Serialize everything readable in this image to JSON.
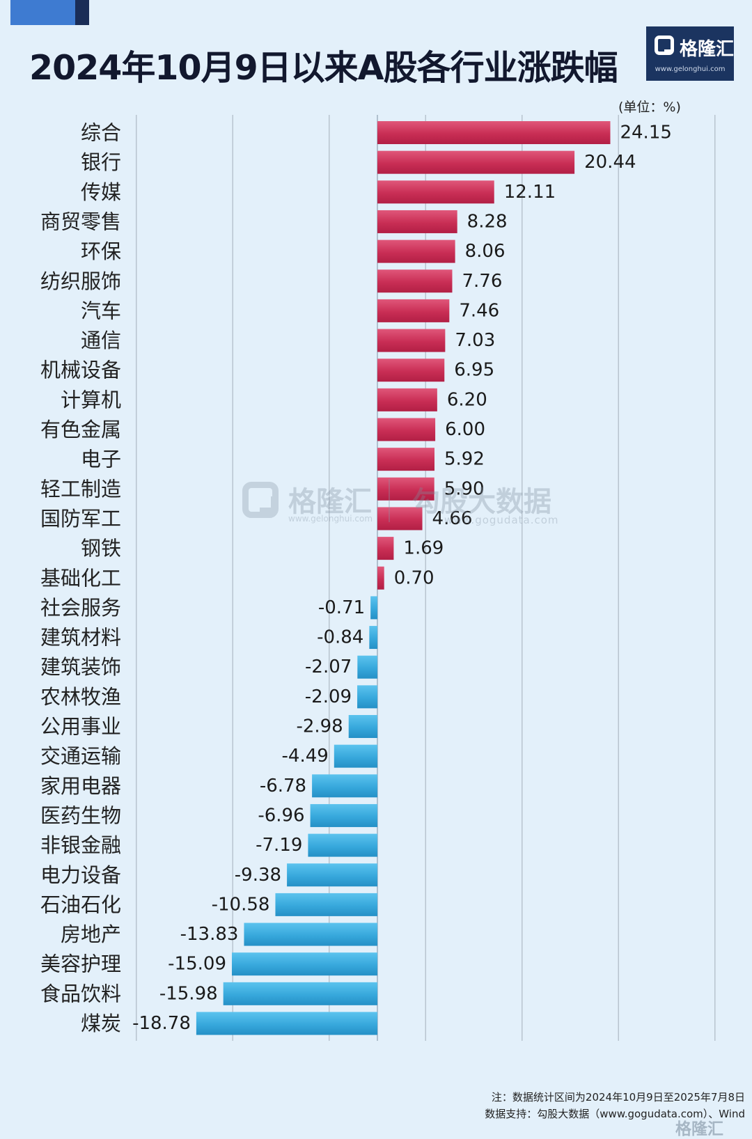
{
  "header": {
    "title": "2024年10月9日以来A股各行业涨跌幅",
    "logo_name": "格隆汇",
    "logo_url": "www.gelonghui.com"
  },
  "unit_label": "(单位：%)",
  "watermark": {
    "brand1": "格隆汇",
    "url1": "www.gelonghui.com",
    "brand2": "勾股大数据",
    "url2": "www.gogudata.com"
  },
  "footer": {
    "note": "注：数据统计区间为2024年10月9日至2025年7月8日",
    "source": "数据支持：勾股大数据（www.gogudata.com）、Wind",
    "corner_watermark": "格隆汇"
  },
  "colors": {
    "positive": "#d13a5f",
    "negative": "#3aaee0",
    "background": "#e3f0fa"
  },
  "chart_data": {
    "type": "bar",
    "orientation": "horizontal",
    "title": "2024年10月9日以来A股各行业涨跌幅",
    "unit": "%",
    "xlim": [
      -25,
      35
    ],
    "grid": true,
    "categories": [
      "综合",
      "银行",
      "传媒",
      "商贸零售",
      "环保",
      "纺织服饰",
      "汽车",
      "通信",
      "机械设备",
      "计算机",
      "有色金属",
      "电子",
      "轻工制造",
      "国防军工",
      "钢铁",
      "基础化工",
      "社会服务",
      "建筑材料",
      "建筑装饰",
      "农林牧渔",
      "公用事业",
      "交通运输",
      "家用电器",
      "医药生物",
      "非银金融",
      "电力设备",
      "石油石化",
      "房地产",
      "美容护理",
      "食品饮料",
      "煤炭"
    ],
    "values": [
      24.15,
      20.44,
      12.11,
      8.28,
      8.06,
      7.76,
      7.46,
      7.03,
      6.95,
      6.2,
      6.0,
      5.92,
      5.9,
      4.66,
      1.69,
      0.7,
      -0.71,
      -0.84,
      -2.07,
      -2.09,
      -2.98,
      -4.49,
      -6.78,
      -6.96,
      -7.19,
      -9.38,
      -10.58,
      -13.83,
      -15.09,
      -15.98,
      -18.78
    ],
    "value_labels": [
      "24.15",
      "20.44",
      "12.11",
      "8.28",
      "8.06",
      "7.76",
      "7.46",
      "7.03",
      "6.95",
      "6.20",
      "6.00",
      "5.92",
      "5.90",
      "4.66",
      "1.69",
      "0.70",
      "-0.71",
      "-0.84",
      "-2.07",
      "-2.09",
      "-2.98",
      "-4.49",
      "-6.78",
      "-6.96",
      "-7.19",
      "-9.38",
      "-10.58",
      "-13.83",
      "-15.09",
      "-15.98",
      "-18.78"
    ]
  }
}
